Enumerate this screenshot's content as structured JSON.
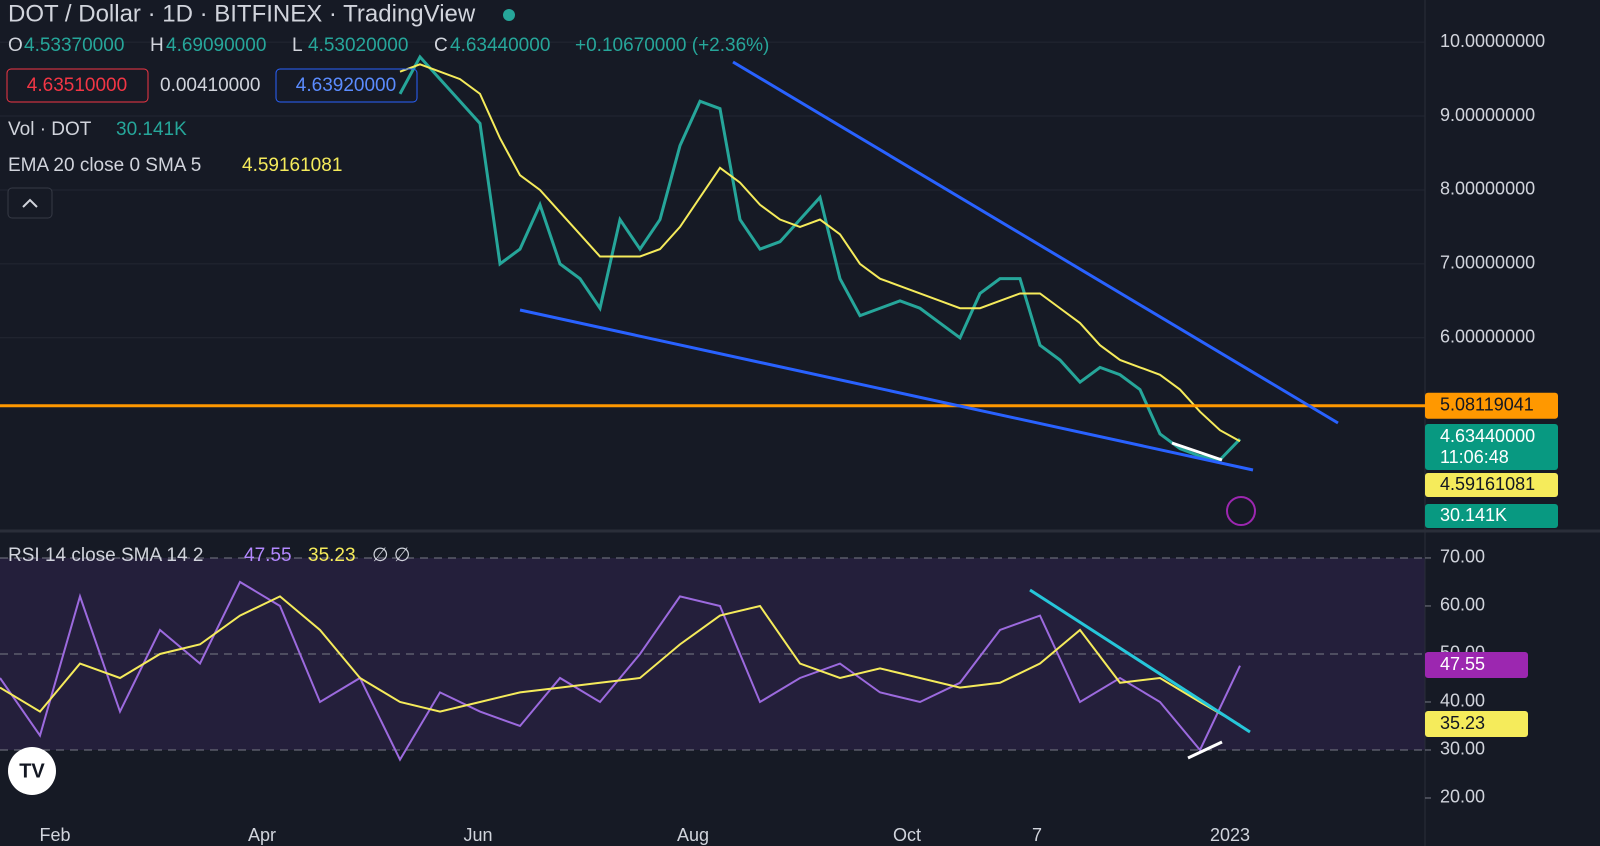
{
  "header": {
    "title": "DOT / Dollar · 1D · BITFINEX · TradingView",
    "ohlc": [
      {
        "key": "O",
        "value": "4.53370000"
      },
      {
        "key": "H",
        "value": "4.69090000"
      },
      {
        "key": "L",
        "value": "4.53020000"
      },
      {
        "key": "C",
        "value": "4.63440000"
      }
    ],
    "change": "+0.10670000 (+2.36%)",
    "bid": "4.63510000",
    "spread": "0.00410000",
    "ask": "4.63920000"
  },
  "indicators": {
    "volume": {
      "label": "Vol · DOT",
      "value": "30.141K"
    },
    "ema": {
      "label": "EMA 20 close 0 SMA 5",
      "value": "4.59161081"
    },
    "rsi": {
      "label": "RSI 14 close SMA 14 2",
      "value": "47.55",
      "sma": "35.23",
      "flags": "∅ ∅"
    }
  },
  "chart": {
    "x_labels": [
      "Feb",
      "Apr",
      "Jun",
      "Aug",
      "Oct",
      "7",
      "2023"
    ],
    "price": {
      "ylim": [
        3.4,
        10.57
      ],
      "yticks": [
        {
          "value": 10,
          "label": "10.00000000"
        },
        {
          "value": 9,
          "label": "9.00000000"
        },
        {
          "value": 8,
          "label": "8.00000000"
        },
        {
          "value": 7,
          "label": "7.00000000"
        },
        {
          "value": 6,
          "label": "6.00000000"
        }
      ],
      "close": [
        9.3,
        9.8,
        9.5,
        9.2,
        8.9,
        7.0,
        7.2,
        7.8,
        7.0,
        6.8,
        6.4,
        7.6,
        7.2,
        7.6,
        8.6,
        9.2,
        9.1,
        7.6,
        7.2,
        7.3,
        7.6,
        7.9,
        6.8,
        6.3,
        6.4,
        6.5,
        6.4,
        6.2,
        6.0,
        6.6,
        6.8,
        6.8,
        5.9,
        5.7,
        5.4,
        5.6,
        5.5,
        5.3,
        4.7,
        4.5,
        4.4,
        4.35,
        4.63
      ],
      "ema": [
        9.6,
        9.7,
        9.6,
        9.5,
        9.3,
        8.7,
        8.2,
        8.0,
        7.7,
        7.4,
        7.1,
        7.1,
        7.1,
        7.2,
        7.5,
        7.9,
        8.3,
        8.1,
        7.8,
        7.6,
        7.5,
        7.6,
        7.4,
        7.0,
        6.8,
        6.7,
        6.6,
        6.5,
        6.4,
        6.4,
        6.5,
        6.6,
        6.6,
        6.4,
        6.2,
        5.9,
        5.7,
        5.6,
        5.5,
        5.3,
        5.0,
        4.75,
        4.6
      ],
      "price_line": 5.08119041,
      "last": "4.63440000",
      "countdown": "11:06:48",
      "ema_badge": "4.59161081",
      "volume_badge": "30.141K"
    },
    "rsi": {
      "ylim": [
        15,
        75.2
      ],
      "yticks": [
        {
          "value": 70,
          "label": "70.00"
        },
        {
          "value": 60,
          "label": "60.00"
        },
        {
          "value": 50,
          "label": "50.00"
        },
        {
          "value": 40,
          "label": "40.00"
        },
        {
          "value": 30,
          "label": "30.00"
        },
        {
          "value": 20,
          "label": "20.00"
        }
      ],
      "rsi": [
        45,
        33,
        62,
        38,
        55,
        48,
        65,
        60,
        40,
        45,
        28,
        42,
        38,
        35,
        45,
        40,
        50,
        62,
        60,
        40,
        45,
        48,
        42,
        40,
        44,
        55,
        58,
        40,
        45,
        40,
        30,
        47.55
      ],
      "sma": [
        43,
        38,
        48,
        45,
        50,
        52,
        58,
        62,
        55,
        45,
        40,
        38,
        40,
        42,
        43,
        44,
        45,
        52,
        58,
        60,
        48,
        45,
        47,
        45,
        43,
        44,
        48,
        55,
        44,
        45,
        40,
        35.23
      ],
      "rsi_badge": "47.55",
      "sma_badge": "35.23"
    }
  }
}
